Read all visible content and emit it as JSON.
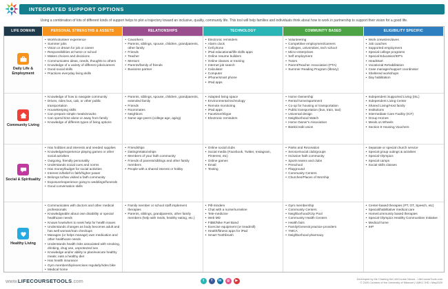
{
  "header": {
    "title": "INTEGRATED SUPPORT OPTIONS",
    "subtitle": "Using a combination of lots of different kinds of support helps to plot a trajectory toward an inclusive, quality, community life. This tool will help families and individuals think about how to work in partnership to support their vision for a good life.",
    "bar_color": "#157f8d"
  },
  "table": {
    "life_domain_header": "LIFE DOMAIN",
    "columns": [
      {
        "key": "personal_strengths",
        "label": "PERSONAL STRENGTHS & ASSETS",
        "color": "#f7941e"
      },
      {
        "key": "relationships",
        "label": "RELATIONSHIPS",
        "color": "#9b4e8e"
      },
      {
        "key": "technology",
        "label": "TECHNOLOGY",
        "color": "#2ab6b6"
      },
      {
        "key": "community_based",
        "label": "COMMUNITY BASED",
        "color": "#4fa347"
      },
      {
        "key": "eligibility_specific",
        "label": "ELIGIBILITY SPECIFIC",
        "color": "#2e7fc0"
      }
    ],
    "rows": [
      {
        "key": "daily-life-employment",
        "domain": "Daily Life & Employment",
        "icon": "briefcase",
        "color": "#f7941e",
        "cells": {
          "personal_strengths": [
            "Work/volunteer experience",
            "Summer jobs",
            "Vision or dream for job or career",
            "Responsibilities at home or school",
            "Makes choices and decisions",
            "Communicates ideas, needs, thoughts to others",
            "Knowledge of a variety of different jobs/careers",
            "Good social skills",
            "Practices everyday living skills"
          ],
          "relationships": [
            "Coworkers",
            "Parents, siblings, spouse, children, grandparents, other family",
            "Friends",
            "Teacher",
            "Mentors",
            "Parents/family of friends",
            "Business partner"
          ],
          "technology": [
            "Electronic reminders",
            "Alarm clock",
            "Cell phone",
            "iPad educational/life skills apps",
            "Online resume builders",
            "Online classes or training",
            "Internet job search",
            "Calculator",
            "Computer",
            "iPhone/smart phone",
            "iPad apps"
          ],
          "community_based": [
            "Volunteering",
            "Competitive employment/careers",
            "Colleges, universities, tech school",
            "Micro-enterprises",
            "Self employment",
            "Tutors",
            "Parent/Teacher Association (PTA)",
            "Summer Reading Program (library)"
          ],
          "eligibility_specific": [
            "Work crews/enclaves",
            "Job coaches",
            "Supported employment",
            "Special college programs",
            "Special Education/IEP's",
            "HeadStart",
            "Vocational Rehabilitation",
            "Case manager/support coordinator",
            "Sheltered workshops",
            "Day habilitation"
          ]
        }
      },
      {
        "key": "community-living",
        "domain": "Community Living",
        "icon": "house",
        "color": "#ee4036",
        "cells": {
          "personal_strengths": [
            "Knowledge of how to navigate community",
            "Drives, rides bus, cab, or other public transportation",
            "Housekeeping skills",
            "Can prepare simple meals/snacks",
            "Can spend time alone or away from family",
            "Knowledge of different types of living options"
          ],
          "relationships": [
            "Parents, siblings, spouse, children, grandparents, extended family",
            "Friends",
            "Roommates",
            "Neighbors",
            "Same age peers (college age, aging)"
          ],
          "technology": [
            "Adapted living space",
            "Environmental technology",
            "Remote monitoring",
            "iPad apps",
            "Facetime/Skype",
            "Electronic reminders"
          ],
          "community_based": [
            "Home Ownership",
            "Rental home/apartment",
            "Co-op for housing or transportation",
            "Public transportation (bus, train, taxi)",
            "Universal design",
            "Neighborhood Watch",
            "Home Owner's Association",
            "Bank/credit union"
          ],
          "eligibility_specific": [
            "Independent Supported Living (ISL)",
            "Independent Living Center",
            "Shared Living/Host family",
            "Institutions",
            "Intermediate Care Facility (ICF)",
            "Group Homes",
            "Meals on Wheels",
            "Section 8 Housing Vouchers"
          ]
        }
      },
      {
        "key": "social-spirituality",
        "domain": "Social & Spirituality",
        "icon": "chat",
        "color": "#c0399f",
        "cells": {
          "personal_strengths": [
            "Has hobbies and interests and needed supplies",
            "Knowledge/experience playing games or other social activities",
            "Outgoing, friendly personality",
            "Understands social cues and norms",
            "Has money/budget for social activities",
            "Interest in/belief in faith/higher power",
            "Belongs to/has visited a faith community",
            "Exposure/experience going to weddings/funerals",
            "Good conversation skills"
          ],
          "relationships": [
            "Friendships",
            "Dating/relationships",
            "Members of your faith community",
            "Friends of parents/siblings and other family members",
            "People with a shared interest or hobby"
          ],
          "technology": [
            "Online social clubs",
            "Social media (Facebook, Twitter, Instagram, Pinterest, etc)",
            "Online games",
            "Email",
            "Texting"
          ],
          "community_based": [
            "Parks and Recreation",
            "Service/social club/groups",
            "Inclusive faith community",
            "Sports teams and clubs",
            "Preschool",
            "Playground",
            "Community Centers",
            "Churches/Places of Worship"
          ],
          "eligibility_specific": [
            "Separate or special church service",
            "Special group outings & activities",
            "Special Olympics",
            "Special camps",
            "Social skills classes"
          ]
        }
      },
      {
        "key": "healthy-living",
        "domain": "Healthy Living",
        "icon": "heart",
        "color": "#27aae1",
        "cells": {
          "personal_strengths": [
            "Communicates with doctors and other medical professionals",
            "Knowledgeable about own disability or special healthcare needs",
            "Knows how/when to seek help for health issues",
            "Understands changes as body becomes adult and has well woman/man checkups",
            "Manages (or helps manage) own medication and other healthcare needs",
            "Understands health risks associated with smoking, drinking, drug use, unprotected sex",
            "Knowledge and/or ability to plan/execute healthy meals; eats a healthy diet",
            "Has health insurance",
            "Gym membership/exercises regularly/rides bike",
            "Medical home"
          ],
          "relationships": [
            "Family member or school staff implement therapies",
            "Parents, siblings, grandparents, other family members (help with meds, healthy eating, etc.)"
          ],
          "technology": [
            "Pill-minders",
            "Chat with a nurse/nurseline",
            "Tele-medicine",
            "Web MD",
            "FitBit/Nike Fuel Band",
            "Exercise equipment (or treadmill)",
            "Health/fitness apps for iPad",
            "Smart Toothbrush"
          ],
          "community_based": [
            "Gym membership",
            "Community Centers",
            "Neighborhood/City Pool",
            "Community Health Centers",
            "Health fairs",
            "Family/General practice providers",
            "YMCA",
            "Neighborhood pharmacy"
          ],
          "eligibility_specific": [
            "Center-based therapies (PT, OT, Speech, etc)",
            "Special/habilitative medical care",
            "Home/community based therapies",
            "Special Olympics Healthy Communities Initiative",
            "Medical home",
            "IHP"
          ]
        }
      }
    ]
  },
  "footer": {
    "website_prefix": "www.",
    "website_name": "LIFECOURSETOOLS",
    "website_suffix": ".com",
    "social": [
      {
        "name": "twitter-icon",
        "glyph": "t",
        "color": "#2ab6b6"
      },
      {
        "name": "facebook-icon",
        "glyph": "f",
        "color": "#3b5998"
      },
      {
        "name": "linkedin-icon",
        "glyph": "in",
        "color": "#0e76a8"
      },
      {
        "name": "instagram-icon",
        "glyph": "◎",
        "color": "#e94f87"
      },
      {
        "name": "youtube-icon",
        "glyph": "▶",
        "color": "#d8383a"
      }
    ],
    "credit_line1": "Developed by the Charting the LifeCourse Nexus - LifeCourseTools.com",
    "credit_line2": "© 2020 Curators of the University of Missouri | UMKC IHD • May2020"
  }
}
